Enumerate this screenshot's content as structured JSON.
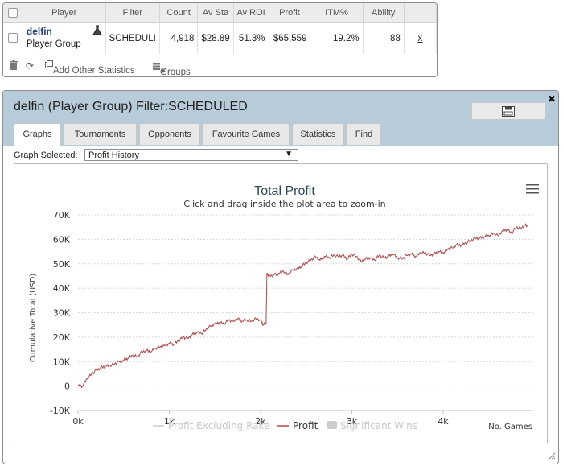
{
  "stats_table": {
    "headers": [
      "Player",
      "Filter",
      "Count",
      "Av Sta",
      "Av ROI",
      "Profit",
      "ITM%",
      "Ability"
    ],
    "row": {
      "player_name": "delfin",
      "player_sub": "Player Group",
      "filter": "SCHEDULI",
      "count": "4,918",
      "av_sta": "$28.89",
      "av_roi": "51.3%",
      "profit": "$65,559",
      "itm": "19.2%",
      "ability": "88",
      "remove": "x"
    },
    "footer": {
      "add_stats_label": "Add Other Statistics",
      "groups_label": "Groups"
    }
  },
  "graph_window": {
    "title": "delfin (Player Group) Filter:SCHEDULED",
    "tabs": [
      "Graphs",
      "Tournaments",
      "Opponents",
      "Favourite Games",
      "Statistics",
      "Find"
    ],
    "active_tab": "Graphs",
    "graph_selected_label": "Graph Selected:",
    "graph_selected_value": "Profit History"
  },
  "chart_data": {
    "type": "line",
    "title": "Total Profit",
    "subtitle": "Click and drag inside the plot area to zoom-in",
    "xlabel": "No. Games",
    "ylabel": "Cumulative Total (USD)",
    "xlim": [
      0,
      4918
    ],
    "ylim": [
      -10000,
      70000
    ],
    "x_ticks": [
      "0k",
      "1k",
      "2k",
      "3k",
      "4k"
    ],
    "y_ticks": [
      "-10K",
      "0",
      "10K",
      "20K",
      "30K",
      "40K",
      "50K",
      "60K",
      "70K"
    ],
    "legend": [
      {
        "name": "Profit Excluding Rake",
        "enabled": false
      },
      {
        "name": "Profit",
        "enabled": true
      },
      {
        "name": "Significant Wins",
        "enabled": false
      }
    ],
    "series": [
      {
        "name": "Profit",
        "color": "#b04a4a",
        "x": [
          0,
          50,
          100,
          150,
          200,
          250,
          300,
          350,
          400,
          450,
          500,
          550,
          600,
          650,
          700,
          750,
          800,
          850,
          900,
          950,
          1000,
          1050,
          1100,
          1150,
          1200,
          1250,
          1300,
          1350,
          1400,
          1450,
          1500,
          1550,
          1600,
          1650,
          1700,
          1750,
          1800,
          1850,
          1900,
          1950,
          2000,
          2030,
          2060,
          2070,
          2100,
          2150,
          2200,
          2250,
          2300,
          2350,
          2400,
          2450,
          2500,
          2550,
          2600,
          2650,
          2700,
          2750,
          2800,
          2850,
          2900,
          2950,
          3000,
          3050,
          3100,
          3150,
          3200,
          3250,
          3300,
          3350,
          3400,
          3450,
          3500,
          3550,
          3600,
          3650,
          3700,
          3750,
          3800,
          3850,
          3900,
          3950,
          4000,
          4050,
          4100,
          4150,
          4200,
          4250,
          4300,
          4350,
          4400,
          4450,
          4500,
          4550,
          4600,
          4650,
          4700,
          4750,
          4800,
          4850,
          4900,
          4918
        ],
        "y": [
          0,
          0,
          3000,
          5000,
          6500,
          7500,
          8000,
          8500,
          9000,
          10000,
          10500,
          11500,
          12500,
          12000,
          14000,
          14500,
          14000,
          15500,
          16000,
          16500,
          17500,
          17000,
          18500,
          20000,
          19500,
          21000,
          22000,
          21500,
          23000,
          24500,
          25500,
          26000,
          25500,
          27000,
          26500,
          27500,
          26500,
          27000,
          26500,
          27500,
          27000,
          25000,
          25500,
          46000,
          45000,
          45500,
          46000,
          47000,
          45500,
          47500,
          48000,
          49000,
          50500,
          51500,
          53000,
          51500,
          53000,
          52500,
          53500,
          53000,
          53500,
          52000,
          54000,
          53000,
          51000,
          52000,
          52500,
          51500,
          53500,
          52500,
          53000,
          54000,
          52500,
          52000,
          53500,
          54000,
          53000,
          54500,
          54500,
          53500,
          54000,
          55000,
          54500,
          56000,
          56500,
          58000,
          57500,
          58500,
          59500,
          60500,
          60500,
          61000,
          61500,
          62500,
          61500,
          63500,
          64000,
          62500,
          65000,
          64500,
          66000,
          65500
        ]
      }
    ]
  }
}
